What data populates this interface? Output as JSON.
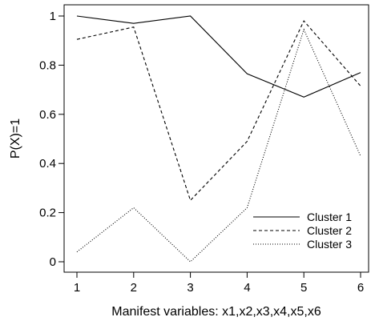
{
  "chart_data": {
    "type": "line",
    "x": [
      1,
      2,
      3,
      4,
      5,
      6
    ],
    "xlabel": "Manifest variables: x1,x2,x3,x4,x5,x6",
    "ylabel": "P(X)=1",
    "xlim": [
      1,
      6
    ],
    "ylim": [
      0,
      1
    ],
    "xticks": [
      "1",
      "2",
      "3",
      "4",
      "5",
      "6"
    ],
    "yticks": [
      "0",
      "0.2",
      "0.4",
      "0.6",
      "0.8",
      "1"
    ],
    "grid": false,
    "legend_position": "bottom-right",
    "series": [
      {
        "name": "Cluster 1",
        "style": "solid",
        "values": [
          1.0,
          0.97,
          1.0,
          0.765,
          0.67,
          0.77
        ]
      },
      {
        "name": "Cluster 2",
        "style": "dashed",
        "values": [
          0.905,
          0.955,
          0.25,
          0.49,
          0.98,
          0.715
        ]
      },
      {
        "name": "Cluster 3",
        "style": "dotted",
        "values": [
          0.04,
          0.22,
          0.0,
          0.22,
          0.945,
          0.43
        ]
      }
    ]
  }
}
